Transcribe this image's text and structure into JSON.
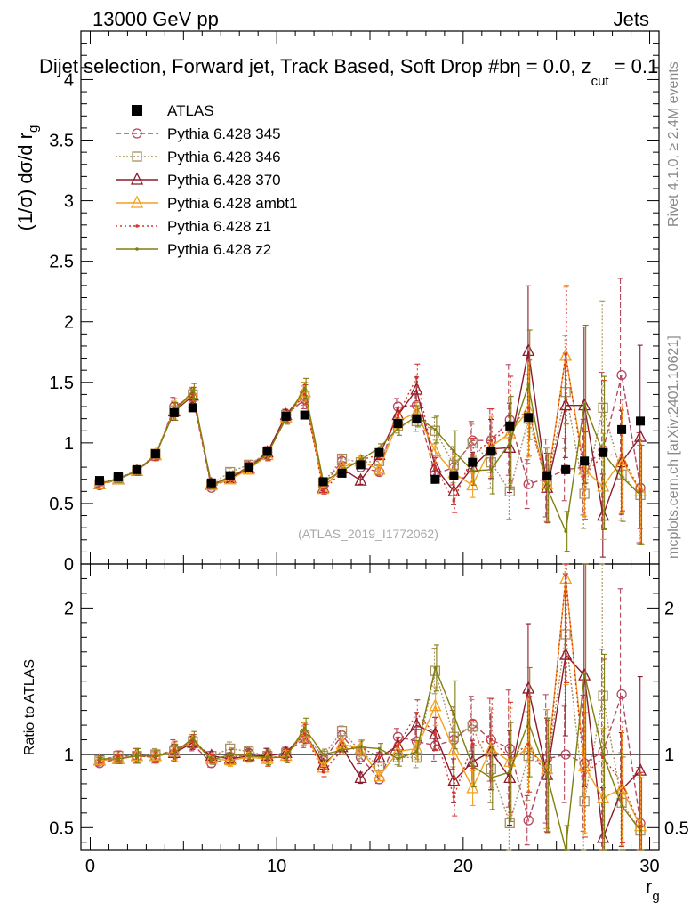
{
  "header": {
    "energy_label": "13000 GeV pp",
    "category_label": "Jets",
    "plot_title": "Dijet selection, Forward jet, Track Based, Soft Drop #b",
    "title_suffix": "η = 0.0, z",
    "title_subscript": "cut",
    "title_tail": " = 0.1",
    "rivet_label": "Rivet 4.1.0, ≥ 2.4M events",
    "mcplots_label": "mcplots.cern.ch [arXiv:2401.10621]",
    "watermark": "(ATLAS_2019_I1772062)"
  },
  "axes": {
    "y_label_main": "(1/σ) dσ/d r",
    "y_label_main_sub": "g",
    "y_label_ratio": "Ratio to ATLAS",
    "x_label": "r",
    "x_label_sub": "g",
    "x_range": [
      -0.5,
      30.5
    ],
    "y_main_range": [
      0,
      4.4
    ],
    "y_ratio_range": [
      0.35,
      2.3
    ],
    "x_ticks": [
      "0",
      "10",
      "20",
      "30"
    ],
    "y_main_ticks": [
      "0",
      "0.5",
      "1",
      "1.5",
      "2",
      "2.5",
      "3",
      "3.5",
      "4"
    ],
    "y_ratio_ticks": [
      "0.5",
      "1",
      "2"
    ]
  },
  "chart_data": {
    "type": "line",
    "x": [
      0.5,
      1.5,
      2.5,
      3.5,
      4.5,
      5.5,
      6.5,
      7.5,
      8.5,
      9.5,
      10.5,
      11.5,
      12.5,
      13.5,
      14.5,
      15.5,
      16.5,
      17.5,
      18.5,
      19.5,
      20.5,
      21.5,
      22.5,
      23.5,
      24.5,
      25.5,
      26.5,
      27.5,
      28.5,
      29.5
    ],
    "data": {
      "name": "ATLAS",
      "values": [
        0.69,
        0.72,
        0.78,
        0.91,
        1.25,
        1.29,
        0.67,
        0.73,
        0.8,
        0.93,
        1.22,
        1.23,
        0.68,
        0.75,
        0.82,
        0.92,
        1.16,
        1.2,
        0.7,
        0.73,
        0.84,
        0.93,
        1.14,
        1.21,
        0.73,
        0.78,
        0.85,
        0.92,
        1.11,
        1.18
      ]
    },
    "series": [
      {
        "name": "Pythia 6.428 345",
        "color": "#b5485e",
        "marker": "circle",
        "dash": "6,3",
        "values": [
          0.65,
          0.7,
          0.77,
          0.89,
          1.3,
          1.38,
          0.63,
          0.71,
          0.81,
          0.92,
          1.23,
          1.36,
          0.65,
          0.85,
          0.8,
          0.76,
          1.3,
          1.31,
          0.74,
          0.8,
          1.02,
          1.02,
          1.19,
          0.66,
          0.71,
          0.78,
          0.8,
          0.94,
          1.56,
          0.63
        ]
      },
      {
        "name": "Pythia 6.428 346",
        "color": "#a89060",
        "marker": "square",
        "dash": "2,2",
        "values": [
          0.66,
          0.71,
          0.77,
          0.91,
          1.27,
          1.4,
          0.66,
          0.76,
          0.82,
          0.92,
          1.23,
          1.39,
          0.67,
          0.87,
          0.84,
          0.85,
          1.14,
          1.18,
          1.1,
          0.82,
          1.0,
          0.84,
          0.6,
          1.2,
          0.66,
          1.42,
          0.58,
          1.29,
          0.74,
          0.57
        ]
      },
      {
        "name": "Pythia 6.428 370",
        "color": "#8b1a2b",
        "marker": "triangle",
        "dash": "",
        "values": [
          0.66,
          0.7,
          0.77,
          0.9,
          1.26,
          1.39,
          0.66,
          0.71,
          0.79,
          0.92,
          1.23,
          1.42,
          0.63,
          0.79,
          0.69,
          0.9,
          1.23,
          1.44,
          0.8,
          0.6,
          0.8,
          0.95,
          0.96,
          1.76,
          0.63,
          1.31,
          1.31,
          0.4,
          0.84,
          1.05
        ]
      },
      {
        "name": "Pythia 6.428 ambt1",
        "color": "#f2a01e",
        "marker": "triangle",
        "dash": "",
        "values": [
          0.66,
          0.7,
          0.77,
          0.9,
          1.27,
          1.4,
          0.65,
          0.7,
          0.78,
          0.9,
          1.21,
          1.42,
          0.62,
          0.8,
          0.85,
          0.78,
          1.18,
          1.25,
          0.93,
          0.75,
          0.65,
          0.97,
          1.08,
          1.27,
          0.66,
          1.72,
          0.78,
          0.64,
          0.86,
          0.6
        ]
      },
      {
        "name": "Pythia 6.428 z1",
        "color": "#d9342b",
        "marker": "dot",
        "dash": "2,3",
        "values": [
          0.66,
          0.71,
          0.77,
          0.89,
          1.29,
          1.4,
          0.65,
          0.72,
          0.8,
          0.9,
          1.22,
          1.4,
          0.6,
          0.77,
          0.86,
          0.9,
          1.23,
          1.54,
          0.8,
          0.52,
          0.9,
          1.02,
          1.12,
          1.29,
          0.62,
          1.73,
          0.73,
          0.9,
          0.9,
          0.6
        ]
      },
      {
        "name": "Pythia 6.428 z2",
        "color": "#7f7f10",
        "marker": "dot",
        "dash": "",
        "values": [
          0.67,
          0.7,
          0.77,
          0.9,
          1.26,
          1.43,
          0.64,
          0.73,
          0.79,
          0.91,
          1.2,
          1.45,
          0.68,
          0.77,
          0.86,
          0.96,
          1.12,
          1.22,
          1.11,
          0.93,
          0.77,
          0.78,
          1.0,
          1.48,
          0.63,
          0.27,
          1.32,
          0.92,
          0.72,
          0.57
        ]
      }
    ],
    "ratio": {
      "data_ref": 1.0,
      "series": [
        {
          "name": "Pythia 6.428 345",
          "values": [
            0.94,
            0.97,
            0.99,
            0.98,
            1.04,
            1.07,
            0.94,
            0.97,
            1.01,
            0.99,
            1.01,
            1.11,
            0.96,
            1.13,
            0.98,
            0.83,
            1.12,
            1.09,
            1.06,
            1.1,
            1.21,
            1.1,
            1.04,
            0.55,
            0.97,
            1.0,
            0.94,
            1.02,
            1.41,
            0.53
          ]
        },
        {
          "name": "Pythia 6.428 346",
          "values": [
            0.96,
            0.99,
            0.99,
            1.0,
            1.02,
            1.09,
            0.99,
            1.04,
            1.02,
            0.99,
            1.01,
            1.13,
            0.99,
            1.16,
            1.02,
            0.92,
            0.98,
            0.98,
            1.57,
            1.12,
            1.19,
            0.9,
            0.53,
            0.99,
            0.9,
            1.82,
            0.68,
            1.4,
            0.67,
            0.48
          ]
        },
        {
          "name": "Pythia 6.428 370",
          "values": [
            0.96,
            0.97,
            0.99,
            0.99,
            1.01,
            1.08,
            0.99,
            0.97,
            0.99,
            0.99,
            1.01,
            1.15,
            0.93,
            1.05,
            0.84,
            0.98,
            1.06,
            1.2,
            1.14,
            0.82,
            0.95,
            1.02,
            0.84,
            1.45,
            0.86,
            1.68,
            1.54,
            0.43,
            0.76,
            0.89
          ]
        },
        {
          "name": "Pythia 6.428 ambt1",
          "values": [
            0.96,
            0.97,
            0.99,
            0.99,
            1.02,
            1.09,
            0.97,
            0.96,
            0.98,
            0.97,
            0.99,
            1.15,
            0.91,
            1.07,
            1.04,
            0.85,
            1.02,
            1.04,
            1.33,
            1.03,
            0.77,
            1.04,
            0.95,
            1.05,
            0.9,
            2.2,
            0.92,
            0.7,
            0.77,
            0.51
          ]
        },
        {
          "name": "Pythia 6.428 z1",
          "values": [
            0.96,
            0.99,
            0.99,
            0.98,
            1.03,
            1.09,
            0.97,
            0.99,
            1.0,
            0.97,
            1.0,
            1.14,
            0.88,
            1.03,
            1.05,
            0.98,
            1.06,
            1.28,
            1.14,
            0.71,
            1.07,
            1.1,
            0.98,
            1.07,
            0.85,
            2.22,
            0.86,
            0.98,
            0.81,
            0.51
          ]
        },
        {
          "name": "Pythia 6.428 z2",
          "values": [
            0.97,
            0.97,
            0.99,
            0.99,
            1.01,
            1.11,
            0.96,
            1.0,
            0.99,
            0.98,
            0.98,
            1.18,
            1.0,
            1.03,
            1.05,
            1.04,
            0.97,
            1.02,
            1.59,
            1.27,
            0.92,
            0.84,
            0.88,
            1.22,
            0.86,
            0.35,
            1.55,
            1.0,
            0.65,
            0.48
          ]
        }
      ]
    },
    "legend_position": "top-left"
  }
}
